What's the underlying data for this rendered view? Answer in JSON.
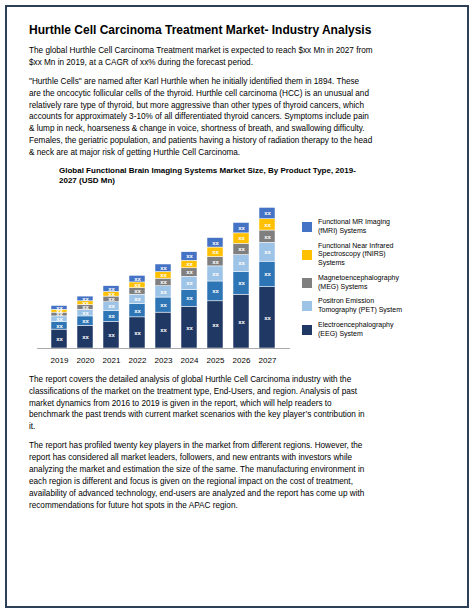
{
  "title": "Hurthle Cell Carcinoma Treatment Market- Industry Analysis",
  "border_color": "#2E4057",
  "text_before": [
    "The global Hurthle Cell Carcinoma Treatment market is expected to reach $xx Mn in 2027 from\n$xx Mn in 2019, at a CAGR of xx% during the forecast period.",
    "\"Hurthle Cells\" are named after Karl Hurthle when he initially identified them in 1894. These\nare the oncocytic follicular cells of the thyroid. Hurthle cell carcinoma (HCC) is an unusual and\nrelatively rare type of thyroid, but more aggressive than other types of thyroid cancers, which\naccounts for approximately 3-10% of all differentiated thyroid cancers. Symptoms include pain\n& lump in neck, hoarseness & change in voice, shortness of breath, and swallowing difficulty.\nFemales, the geriatric population, and patients having a history of radiation therapy to the head\n& neck are at major risk of getting Hurthle Cell Carcinoma."
  ],
  "chart_data": {
    "type": "bar",
    "title": "Global Functional Brain Imaging Systems Market Size, By Product Type, 2019-\n2027 (USD Mn)",
    "categories": [
      "2019",
      "2020",
      "2021",
      "2022",
      "2023",
      "2024",
      "2025",
      "2026",
      "2027"
    ],
    "stacked": true,
    "data_labels": true,
    "tick_labels": "x",
    "grid": false,
    "ylim": [
      0,
      160
    ],
    "series": [
      {
        "name": "Electroencephalography\n(EEG) System",
        "color": "#1F3864",
        "values": [
          20,
          24,
          28,
          33,
          38,
          44,
          50,
          57,
          65
        ],
        "value_labels": [
          "xx",
          "xx",
          "xx",
          "xx",
          "xx",
          "xx",
          "xx",
          "xx",
          "xx"
        ]
      },
      {
        "color": "#2E75B6",
        "values": [
          8,
          10,
          12,
          14,
          16,
          18,
          21,
          24,
          27
        ],
        "value_labels": [
          "xx",
          "xx",
          "xx",
          "xx",
          "xx",
          "xx",
          "xx",
          "xx",
          "xx"
        ]
      },
      {
        "name": "Positron Emission\nTomography (PET) System",
        "color": "#9DC3E6",
        "values": [
          6,
          7,
          9,
          10,
          12,
          14,
          16,
          18,
          20
        ],
        "value_labels": [
          "xx",
          "xx",
          "xx",
          "xx",
          "xx",
          "xx",
          "xx",
          "xx",
          "xx"
        ]
      },
      {
        "name": "Magnetoencephalography\n(MEG) Systems",
        "color": "#7F7F7F",
        "values": [
          4,
          5,
          6,
          7,
          8,
          9,
          10,
          12,
          13
        ],
        "value_labels": [
          "xx",
          "xx",
          "xx",
          "xx",
          "xx",
          "xx",
          "xx",
          "xx",
          "xx"
        ]
      },
      {
        "name": "Functional Near Infrared\nSpectroscopy (fNIRS)\nSystems",
        "color": "#FFC000",
        "values": [
          3,
          4,
          5,
          6,
          7,
          8,
          10,
          11,
          12
        ],
        "value_labels": [
          "xx",
          "xx",
          "xx",
          "xx",
          "xx",
          "xx",
          "xx",
          "xx",
          "xx"
        ]
      },
      {
        "name": "Functional MR Imaging\n(fMRI) Systems",
        "color": "#4472C4",
        "values": [
          4,
          5,
          6,
          7,
          8,
          9,
          10,
          11,
          12
        ],
        "value_labels": [
          "xx",
          "xx",
          "xx",
          "xx",
          "xx",
          "xx",
          "xx",
          "xx",
          "xx"
        ]
      }
    ]
  },
  "text_after": [
    "The report covers the detailed analysis of global Hurthle Cell Carcinoma industry with the\nclassifications of the market on the treatment type, End-Users, and region. Analysis of past\nmarket dynamics from 2016 to 2019 is given in the report, which will help readers to\nbenchmark the past trends with current market scenarios with the key player’s contribution in\nit.",
    "The report has profiled twenty key players in the market from different regions. However, the\nreport has considered all market leaders, followers, and new entrants with investors while\nanalyzing the market and estimation the size of the same. The manufacturing environment in\neach region is different and focus is given on the regional impact on the cost of treatment,\navailability of advanced technology, end-users are analyzed and the report has come up with\nrecommendations for future hot spots in the APAC region."
  ]
}
